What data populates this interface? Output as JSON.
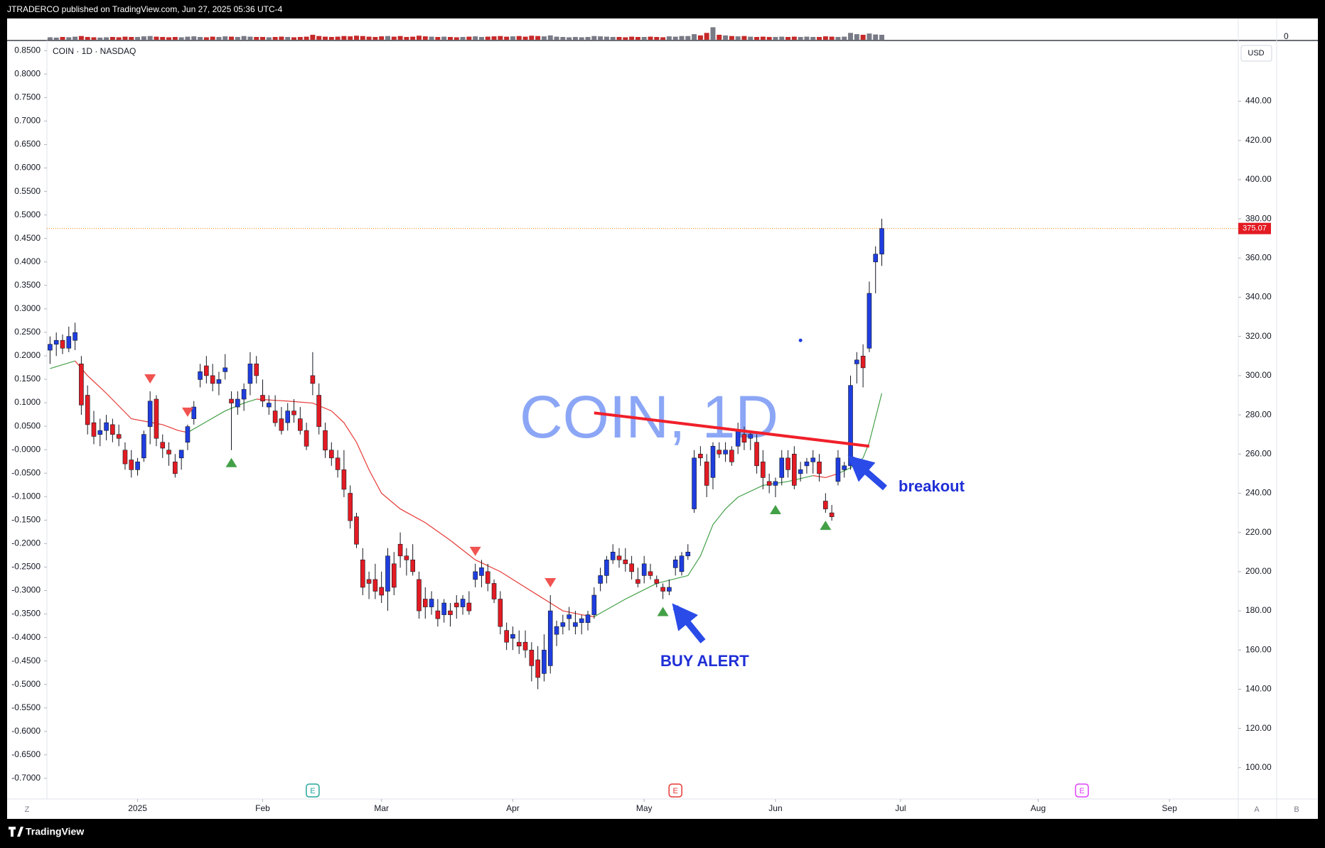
{
  "page": {
    "header": "JTRADERCO published on TradingView.com, Jun 27, 2025 05:36 UTC-4",
    "footer": "TradingView"
  },
  "chart_data": {
    "type": "candlestick",
    "symbol": "COIN · 1D · NASDAQ",
    "watermark": "COIN, 1D",
    "currency": "USD",
    "annotations": [
      "breakout",
      "BUY ALERT"
    ],
    "buttons": [
      "Z",
      "A",
      "B"
    ],
    "up_color": "#1f3ee0",
    "down_color": "#e31b23",
    "ohlc": [
      [
        313,
        320,
        306,
        316
      ],
      [
        316,
        322,
        310,
        318
      ],
      [
        318,
        321,
        311,
        314
      ],
      [
        314,
        325,
        312,
        320
      ],
      [
        318,
        327,
        313,
        322
      ],
      [
        306,
        310,
        280,
        285
      ],
      [
        290,
        295,
        270,
        275
      ],
      [
        276,
        282,
        265,
        269
      ],
      [
        270,
        278,
        264,
        272
      ],
      [
        272,
        280,
        267,
        276
      ],
      [
        275,
        278,
        266,
        270
      ],
      [
        270,
        275,
        264,
        268
      ],
      [
        262,
        266,
        252,
        255
      ],
      [
        257,
        262,
        248,
        252
      ],
      [
        252,
        258,
        249,
        256
      ],
      [
        258,
        272,
        256,
        270
      ],
      [
        274,
        292,
        265,
        287
      ],
      [
        288,
        290,
        264,
        268
      ],
      [
        266,
        270,
        258,
        263
      ],
      [
        262,
        266,
        254,
        260
      ],
      [
        256,
        260,
        248,
        250
      ],
      [
        258,
        262,
        252,
        262
      ],
      [
        266,
        275,
        262,
        274
      ],
      [
        278,
        287,
        275,
        284
      ],
      [
        298,
        306,
        294,
        302
      ],
      [
        305,
        310,
        296,
        300
      ],
      [
        300,
        306,
        292,
        296
      ],
      [
        296,
        302,
        290,
        298
      ],
      [
        302,
        311,
        298,
        304
      ],
      [
        288,
        292,
        262,
        286
      ],
      [
        284,
        292,
        280,
        288
      ],
      [
        288,
        296,
        282,
        293
      ],
      [
        296,
        312,
        290,
        306
      ],
      [
        306,
        310,
        296,
        300
      ],
      [
        290,
        298,
        284,
        287
      ],
      [
        284,
        290,
        280,
        286
      ],
      [
        282,
        290,
        274,
        276
      ],
      [
        278,
        284,
        270,
        272
      ],
      [
        276,
        286,
        272,
        282
      ],
      [
        282,
        288,
        276,
        280
      ],
      [
        278,
        284,
        270,
        272
      ],
      [
        272,
        276,
        262,
        264
      ],
      [
        300,
        312,
        290,
        296
      ],
      [
        290,
        296,
        270,
        274
      ],
      [
        272,
        276,
        258,
        262
      ],
      [
        262,
        266,
        254,
        258
      ],
      [
        258,
        262,
        248,
        252
      ],
      [
        252,
        262,
        238,
        242
      ],
      [
        240,
        244,
        222,
        226
      ],
      [
        228,
        230,
        212,
        214
      ],
      [
        206,
        212,
        188,
        192
      ],
      [
        196,
        200,
        186,
        194
      ],
      [
        196,
        204,
        186,
        190
      ],
      [
        192,
        200,
        184,
        188
      ],
      [
        190,
        212,
        180,
        208
      ],
      [
        204,
        210,
        188,
        192
      ],
      [
        214,
        220,
        202,
        208
      ],
      [
        208,
        212,
        198,
        206
      ],
      [
        206,
        214,
        198,
        200
      ],
      [
        196,
        200,
        176,
        180
      ],
      [
        186,
        192,
        176,
        182
      ],
      [
        182,
        190,
        178,
        186
      ],
      [
        180,
        186,
        172,
        176
      ],
      [
        178,
        186,
        174,
        184
      ],
      [
        180,
        184,
        172,
        178
      ],
      [
        184,
        188,
        176,
        182
      ],
      [
        182,
        188,
        178,
        186
      ],
      [
        184,
        190,
        178,
        180
      ],
      [
        196,
        204,
        192,
        200
      ],
      [
        198,
        206,
        192,
        202
      ],
      [
        200,
        204,
        190,
        194
      ],
      [
        194,
        196,
        184,
        186
      ],
      [
        186,
        190,
        168,
        172
      ],
      [
        170,
        174,
        160,
        164
      ],
      [
        166,
        172,
        160,
        168
      ],
      [
        164,
        170,
        158,
        162
      ],
      [
        164,
        170,
        156,
        160
      ],
      [
        160,
        164,
        144,
        152
      ],
      [
        155,
        162,
        140,
        146
      ],
      [
        148,
        168,
        144,
        160
      ],
      [
        152,
        188,
        148,
        180
      ],
      [
        168,
        175,
        162,
        172
      ],
      [
        172,
        178,
        168,
        174
      ],
      [
        176,
        182,
        170,
        178
      ],
      [
        172,
        180,
        168,
        174
      ],
      [
        174,
        178,
        168,
        176
      ],
      [
        174,
        180,
        170,
        178
      ],
      [
        178,
        192,
        176,
        188
      ],
      [
        194,
        202,
        190,
        198
      ],
      [
        198,
        208,
        194,
        206
      ],
      [
        206,
        214,
        204,
        210
      ],
      [
        208,
        212,
        202,
        206
      ],
      [
        206,
        212,
        200,
        204
      ],
      [
        204,
        208,
        196,
        200
      ],
      [
        196,
        202,
        192,
        194
      ],
      [
        198,
        208,
        194,
        204
      ],
      [
        200,
        204,
        196,
        198
      ],
      [
        196,
        198,
        192,
        194
      ],
      [
        192,
        194,
        186,
        190
      ],
      [
        190,
        196,
        188,
        192
      ],
      [
        202,
        208,
        198,
        206
      ],
      [
        200,
        210,
        198,
        208
      ],
      [
        208,
        214,
        206,
        210
      ],
      [
        232,
        262,
        230,
        258
      ],
      [
        260,
        264,
        254,
        258
      ],
      [
        256,
        260,
        238,
        244
      ],
      [
        248,
        266,
        242,
        264
      ],
      [
        262,
        266,
        258,
        260
      ],
      [
        260,
        266,
        256,
        262
      ],
      [
        262,
        264,
        254,
        256
      ],
      [
        264,
        276,
        260,
        272
      ],
      [
        270,
        274,
        262,
        266
      ],
      [
        268,
        272,
        262,
        270
      ],
      [
        266,
        270,
        250,
        254
      ],
      [
        256,
        262,
        242,
        248
      ],
      [
        246,
        250,
        240,
        244
      ],
      [
        244,
        248,
        238,
        246
      ],
      [
        248,
        262,
        244,
        258
      ],
      [
        258,
        262,
        248,
        252
      ],
      [
        260,
        264,
        242,
        244
      ],
      [
        250,
        256,
        246,
        252
      ],
      [
        254,
        258,
        250,
        256
      ],
      [
        256,
        262,
        250,
        258
      ],
      [
        256,
        260,
        246,
        250
      ],
      [
        236,
        240,
        230,
        232
      ],
      [
        230,
        234,
        226,
        228
      ],
      [
        246,
        262,
        244,
        258
      ],
      [
        252,
        256,
        248,
        254
      ],
      [
        254,
        300,
        252,
        295
      ],
      [
        306,
        312,
        296,
        308
      ],
      [
        310,
        316,
        294,
        304
      ],
      [
        314,
        348,
        312,
        342
      ],
      [
        358,
        366,
        342,
        362
      ],
      [
        362,
        380,
        356,
        375.07
      ]
    ],
    "volume": [
      8,
      7,
      9,
      8,
      10,
      12,
      9,
      8,
      7,
      8,
      9,
      8,
      10,
      9,
      9,
      11,
      12,
      10,
      9,
      8,
      9,
      8,
      10,
      11,
      9,
      8,
      10,
      9,
      11,
      10,
      9,
      12,
      10,
      9,
      9,
      8,
      9,
      10,
      9,
      8,
      9,
      10,
      16,
      12,
      10,
      9,
      10,
      12,
      11,
      13,
      12,
      10,
      9,
      11,
      12,
      10,
      12,
      9,
      10,
      13,
      11,
      10,
      9,
      10,
      9,
      8,
      9,
      10,
      11,
      9,
      10,
      11,
      12,
      10,
      11,
      12,
      10,
      13,
      12,
      11,
      14,
      10,
      9,
      8,
      9,
      8,
      9,
      12,
      11,
      10,
      9,
      9,
      8,
      10,
      9,
      9,
      10,
      9,
      8,
      11,
      10,
      12,
      12,
      18,
      14,
      22,
      40,
      16,
      14,
      12,
      11,
      12,
      10,
      9,
      10,
      9,
      9,
      10,
      9,
      10,
      9,
      10,
      9,
      9,
      11,
      10,
      9,
      10,
      22,
      18,
      16,
      20,
      17,
      16
    ],
    "vlim": [
      0,
      50
    ],
    "vticks": [
      0
    ],
    "ma_segments": [
      {
        "color": "#43a047",
        "x": [
          0,
          4
        ],
        "values": [
          303.6,
          307.5
        ]
      },
      {
        "color": "#e53935",
        "x": [
          4,
          6,
          9,
          13,
          15.5,
          18,
          20.5,
          22
        ],
        "values": [
          307.5,
          300,
          291,
          278,
          276.5,
          275,
          272,
          271
        ]
      },
      {
        "color": "#43a047",
        "x": [
          22,
          25,
          28,
          31,
          33
        ],
        "values": [
          271,
          276.5,
          282,
          286,
          288
        ]
      },
      {
        "color": "#e53935",
        "x": [
          33,
          38,
          42,
          45,
          47,
          49,
          51,
          53,
          56,
          60,
          64,
          68,
          72,
          76,
          79,
          82,
          85,
          87
        ],
        "values": [
          288,
          287,
          286,
          282,
          276,
          266,
          252,
          240,
          232,
          225,
          216,
          206,
          200,
          192,
          186,
          180,
          178,
          177
        ]
      },
      {
        "color": "#43a047",
        "x": [
          87,
          92,
          97,
          102,
          104,
          106,
          108,
          110,
          114,
          118,
          122
        ],
        "values": [
          177,
          186,
          194,
          198,
          208,
          224,
          232,
          238,
          244,
          246,
          249
        ]
      },
      {
        "color": "#e53935",
        "x": [
          122,
          124,
          126
        ],
        "values": [
          249,
          248,
          250
        ]
      },
      {
        "color": "#43a047",
        "x": [
          126,
          128,
          130,
          131,
          133
        ],
        "values": [
          250,
          253,
          258,
          266,
          291
        ]
      }
    ],
    "trendline": {
      "color": "#f0202a",
      "x": [
        87,
        131
      ],
      "values": [
        281,
        264
      ]
    },
    "sell_signals": [
      16,
      22,
      68,
      80
    ],
    "buy_signals": [
      29,
      98,
      116,
      124
    ],
    "dot": {
      "x": 120,
      "value": 318
    },
    "last_price": 375.07,
    "earnings": [
      {
        "x": 42,
        "label": "E",
        "color": "#26a69a"
      },
      {
        "x": 100,
        "label": "E",
        "color": "#e53935"
      },
      {
        "x": 165,
        "label": "E",
        "color": "#e040fb"
      }
    ],
    "xlim": [
      -0.5,
      190
    ],
    "xticks": [
      {
        "value": 14,
        "label": "2025"
      },
      {
        "value": 34,
        "label": "Feb"
      },
      {
        "value": 53,
        "label": "Mar"
      },
      {
        "value": 74,
        "label": "Apr"
      },
      {
        "value": 95,
        "label": "May"
      },
      {
        "value": 116,
        "label": "Jun"
      },
      {
        "value": 136,
        "label": "Jul"
      },
      {
        "value": 158,
        "label": "Aug"
      },
      {
        "value": 179,
        "label": "Sep"
      }
    ],
    "ylim": [
      84,
      471
    ],
    "yticks": [
      {
        "value": 100,
        "label": "100.00"
      },
      {
        "value": 120,
        "label": "120.00"
      },
      {
        "value": 140,
        "label": "140.00"
      },
      {
        "value": 160,
        "label": "160.00"
      },
      {
        "value": 180,
        "label": "180.00"
      },
      {
        "value": 200,
        "label": "200.00"
      },
      {
        "value": 220,
        "label": "220.00"
      },
      {
        "value": 240,
        "label": "240.00"
      },
      {
        "value": 260,
        "label": "260.00"
      },
      {
        "value": 280,
        "label": "280.00"
      },
      {
        "value": 300,
        "label": "300.00"
      },
      {
        "value": 320,
        "label": "320.00"
      },
      {
        "value": 340,
        "label": "340.00"
      },
      {
        "value": 360,
        "label": "360.00"
      },
      {
        "value": 380,
        "label": "380.00"
      },
      {
        "value": 400,
        "label": "400.00"
      },
      {
        "value": 420,
        "label": "420.00"
      },
      {
        "value": 440,
        "label": "440.00"
      }
    ],
    "y2lim": [
      -0.744,
      0.8716
    ],
    "y2ticks": [
      {
        "value": 0.85,
        "label": "0.8500"
      },
      {
        "value": 0.8,
        "label": "0.8000"
      },
      {
        "value": 0.75,
        "label": "0.7500"
      },
      {
        "value": 0.7,
        "label": "0.7000"
      },
      {
        "value": 0.65,
        "label": "0.6500"
      },
      {
        "value": 0.6,
        "label": "0.6000"
      },
      {
        "value": 0.55,
        "label": "0.5500"
      },
      {
        "value": 0.5,
        "label": "0.5000"
      },
      {
        "value": 0.45,
        "label": "0.4500"
      },
      {
        "value": 0.4,
        "label": "0.4000"
      },
      {
        "value": 0.35,
        "label": "0.3500"
      },
      {
        "value": 0.3,
        "label": "0.3000"
      },
      {
        "value": 0.25,
        "label": "0.2500"
      },
      {
        "value": 0.2,
        "label": "0.2000"
      },
      {
        "value": 0.15,
        "label": "0.1500"
      },
      {
        "value": 0.1,
        "label": "0.1000"
      },
      {
        "value": 0.05,
        "label": "0.0500"
      },
      {
        "value": 0,
        "label": "-0.0000"
      },
      {
        "value": -0.05,
        "label": "-0.0500"
      },
      {
        "value": -0.1,
        "label": "-0.1000"
      },
      {
        "value": -0.15,
        "label": "-0.1500"
      },
      {
        "value": -0.2,
        "label": "-0.2000"
      },
      {
        "value": -0.25,
        "label": "-0.2500"
      },
      {
        "value": -0.3,
        "label": "-0.3000"
      },
      {
        "value": -0.35,
        "label": "-0.3500"
      },
      {
        "value": -0.4,
        "label": "-0.4000"
      },
      {
        "value": -0.45,
        "label": "-0.4500"
      },
      {
        "value": -0.5,
        "label": "-0.5000"
      },
      {
        "value": -0.55,
        "label": "-0.5500"
      },
      {
        "value": -0.6,
        "label": "-0.6000"
      },
      {
        "value": -0.65,
        "label": "-0.6500"
      },
      {
        "value": -0.7,
        "label": "-0.7000"
      }
    ]
  }
}
